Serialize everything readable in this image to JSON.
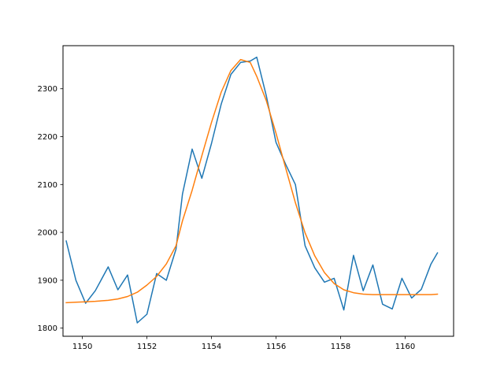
{
  "chart_data": {
    "type": "line",
    "title": "",
    "xlabel": "",
    "ylabel": "",
    "xlim": [
      1149.4,
      1161.5
    ],
    "ylim": [
      1783,
      2390
    ],
    "xticks": [
      1150,
      1152,
      1154,
      1156,
      1158,
      1160
    ],
    "yticks": [
      1800,
      1900,
      2000,
      2100,
      2200,
      2300
    ],
    "xtick_labels": [
      "1150",
      "1152",
      "1154",
      "1156",
      "1158",
      "1160"
    ],
    "ytick_labels": [
      "1800",
      "1900",
      "2000",
      "2100",
      "2200",
      "2300"
    ],
    "grid": false,
    "legend": "none",
    "series": [
      {
        "color": "#1f77b4",
        "x": [
          1149.5,
          1149.8,
          1150.1,
          1150.4,
          1150.8,
          1151.1,
          1151.4,
          1151.7,
          1152.0,
          1152.3,
          1152.6,
          1152.9,
          1153.1,
          1153.4,
          1153.7,
          1154.0,
          1154.3,
          1154.6,
          1154.9,
          1155.2,
          1155.4,
          1155.7,
          1156.0,
          1156.3,
          1156.6,
          1156.9,
          1157.2,
          1157.5,
          1157.8,
          1158.1,
          1158.4,
          1158.7,
          1159.0,
          1159.3,
          1159.6,
          1159.9,
          1160.2,
          1160.5,
          1160.8,
          1161.0
        ],
        "y": [
          1982,
          1900,
          1852,
          1878,
          1928,
          1880,
          1911,
          1811,
          1829,
          1914,
          1900,
          1965,
          2080,
          2174,
          2113,
          2186,
          2268,
          2330,
          2355,
          2358,
          2366,
          2285,
          2188,
          2142,
          2100,
          1972,
          1926,
          1896,
          1904,
          1838,
          1952,
          1878,
          1932,
          1850,
          1840,
          1904,
          1863,
          1881,
          1934,
          1957
        ]
      },
      {
        "color": "#ff7f0e",
        "x": [
          1149.5,
          1149.8,
          1150.1,
          1150.4,
          1150.8,
          1151.1,
          1151.4,
          1151.7,
          1152.0,
          1152.3,
          1152.6,
          1152.9,
          1153.1,
          1153.4,
          1153.7,
          1154.0,
          1154.3,
          1154.6,
          1154.9,
          1155.2,
          1155.4,
          1155.7,
          1156.0,
          1156.3,
          1156.6,
          1156.9,
          1157.2,
          1157.5,
          1157.8,
          1158.1,
          1158.4,
          1158.7,
          1159.0,
          1159.3,
          1159.6,
          1159.9,
          1160.2,
          1160.5,
          1160.8,
          1161.0
        ],
        "y": [
          1853,
          1854,
          1855,
          1856,
          1858,
          1861,
          1866,
          1875,
          1890,
          1908,
          1934,
          1972,
          2024,
          2088,
          2160,
          2230,
          2293,
          2338,
          2361,
          2355,
          2326,
          2275,
          2207,
          2134,
          2062,
          1999,
          1951,
          1916,
          1893,
          1880,
          1874,
          1871,
          1870,
          1870,
          1870,
          1870,
          1870,
          1870,
          1870,
          1871
        ]
      }
    ]
  }
}
